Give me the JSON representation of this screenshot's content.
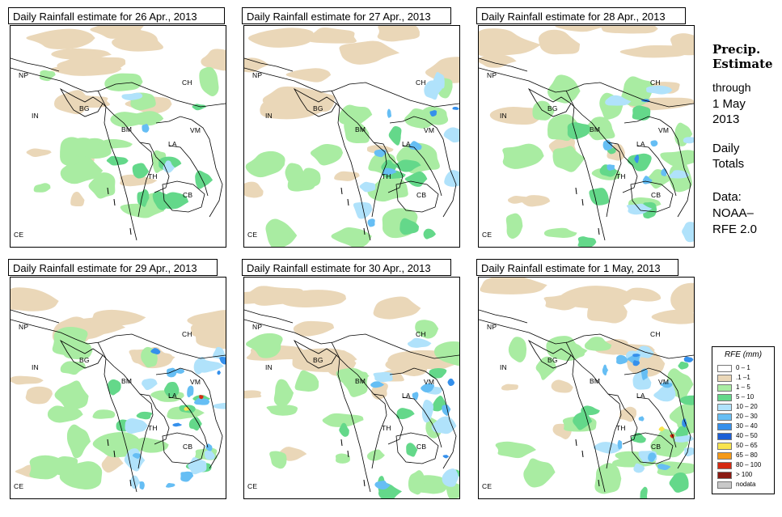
{
  "panels": [
    {
      "title": "Daily Rainfall estimate for  26 Apr., 2013",
      "intensity": 0
    },
    {
      "title": "Daily Rainfall estimate for  27 Apr., 2013",
      "intensity": 1
    },
    {
      "title": "Daily Rainfall estimate for  28 Apr., 2013",
      "intensity": 1
    },
    {
      "title": "Daily Rainfall estimate for  29 Apr., 2013",
      "intensity": 2
    },
    {
      "title": "Daily Rainfall estimate for  30 Apr., 2013",
      "intensity": 1
    },
    {
      "title": "Daily Rainfall estimate for  1 May, 2013",
      "intensity": 2
    }
  ],
  "country_labels": {
    "np": "NP",
    "ch": "CH",
    "in": "IN",
    "bg": "BG",
    "bm": "BM",
    "vm": "VM",
    "la": "LA",
    "th": "TH",
    "cb": "CB",
    "ce": "CE"
  },
  "sidebar": {
    "title_line1": "Precip.",
    "title_line2": "Estimate",
    "through": "through",
    "date_line1": "1 May",
    "date_line2": "2013",
    "daily": "Daily",
    "totals": "Totals",
    "data_label": "Data:",
    "source_line1": "NOAA–",
    "source_line2": "RFE 2.0"
  },
  "legend": {
    "title": "RFE (mm)",
    "items": [
      {
        "label": "0 – 1",
        "color": "#ffffff"
      },
      {
        "label": ".1 –1",
        "color": "#ead7b8"
      },
      {
        "label": "1 – 5",
        "color": "#a9eca2"
      },
      {
        "label": "5 – 10",
        "color": "#64d88a"
      },
      {
        "label": "10 – 20",
        "color": "#b0e2fb"
      },
      {
        "label": "20 – 30",
        "color": "#66bef4"
      },
      {
        "label": "30 – 40",
        "color": "#3590ec"
      },
      {
        "label": "40 – 50",
        "color": "#1c5fd6"
      },
      {
        "label": "50 – 65",
        "color": "#f9e44e"
      },
      {
        "label": "65 – 80",
        "color": "#f59a18"
      },
      {
        "label": "80 – 100",
        "color": "#d52a12"
      },
      {
        "label": "> 100",
        "color": "#8a1a12"
      },
      {
        "label": "nodata",
        "color": "#c8c8c8"
      }
    ]
  }
}
